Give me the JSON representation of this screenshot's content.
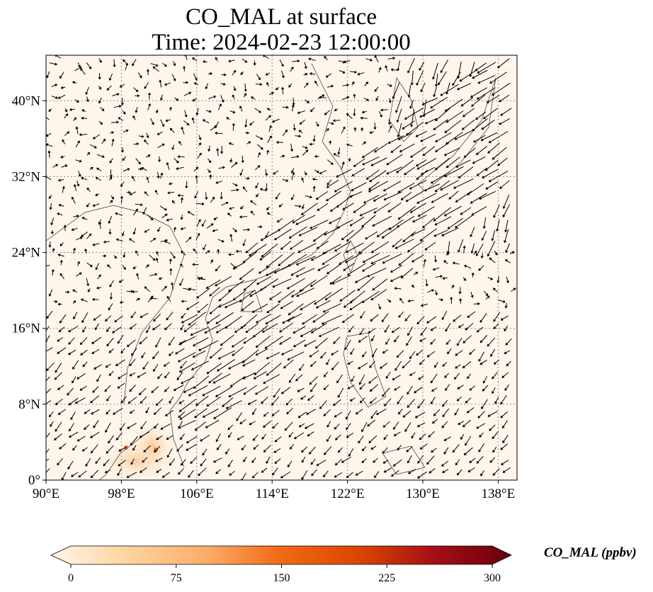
{
  "title": {
    "line1": "CO_MAL at surface",
    "line2": "Time: 2024-02-23 12:00:00"
  },
  "map": {
    "lon_range": [
      90,
      140
    ],
    "lat_range": [
      0,
      44.8
    ],
    "lon_ticks": [
      {
        "value": 90,
        "label": "90°E"
      },
      {
        "value": 98,
        "label": "98°E"
      },
      {
        "value": 106,
        "label": "106°E"
      },
      {
        "value": 114,
        "label": "114°E"
      },
      {
        "value": 122,
        "label": "122°E"
      },
      {
        "value": 130,
        "label": "130°E"
      },
      {
        "value": 138,
        "label": "138°E"
      }
    ],
    "lat_ticks": [
      {
        "value": 0,
        "label": "0°"
      },
      {
        "value": 8,
        "label": "8°N"
      },
      {
        "value": 16,
        "label": "16°N"
      },
      {
        "value": 24,
        "label": "24°N"
      },
      {
        "value": 32,
        "label": "32°N"
      },
      {
        "value": 40,
        "label": "40°N"
      }
    ],
    "background_color": "#fff5eb",
    "arrow_color": "#000000"
  },
  "colorbar": {
    "label": "CO_MAL (ppbv)",
    "min": 0,
    "max": 300,
    "ticks": [
      "0",
      "75",
      "150",
      "225",
      "300"
    ],
    "colors": [
      "#fff5eb",
      "#fdd49e",
      "#fdae6b",
      "#f16913",
      "#d94801",
      "#a50f15",
      "#67000d"
    ],
    "extend": "both"
  }
}
